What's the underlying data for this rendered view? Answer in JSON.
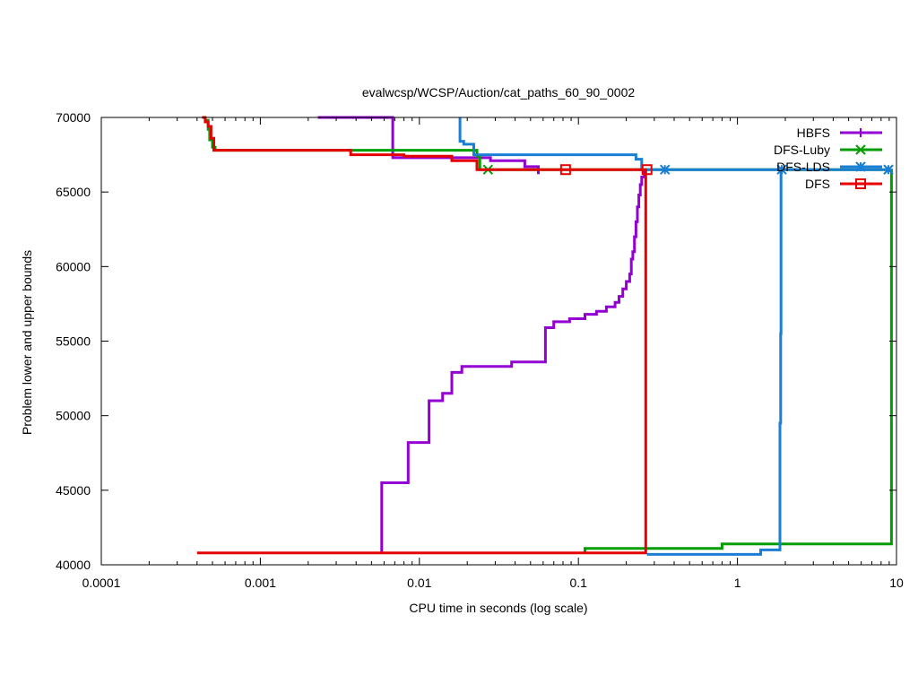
{
  "chart_data": {
    "type": "line",
    "title": "evalwcsp/WCSP/Auction/cat_paths_60_90_0002",
    "xlabel": "CPU time in seconds (log scale)",
    "ylabel": "Problem lower and upper bounds",
    "x_scale": "log",
    "xlim": [
      0.0001,
      10
    ],
    "ylim": [
      40000,
      70000
    ],
    "x_ticks": [
      0.0001,
      0.001,
      0.01,
      0.1,
      1,
      10
    ],
    "x_tick_labels": [
      "0.0001",
      "0.001",
      "0.01",
      "0.1",
      "1",
      "10"
    ],
    "y_ticks": [
      40000,
      45000,
      50000,
      55000,
      60000,
      65000,
      70000
    ],
    "y_tick_labels": [
      "40000",
      "45000",
      "50000",
      "55000",
      "60000",
      "65000",
      "70000"
    ],
    "grid": false,
    "legend_position": "top-right",
    "series": [
      {
        "name": "HBFS",
        "color": "#9400d3",
        "marker": "plus",
        "marker_x": [],
        "bounds": [
          {
            "points": [
              [
                0.0023,
                70000
              ],
              [
                0.0068,
                70000
              ],
              [
                0.0068,
                67300
              ],
              [
                0.028,
                67300
              ],
              [
                0.028,
                67100
              ],
              [
                0.046,
                67100
              ],
              [
                0.046,
                66700
              ],
              [
                0.056,
                66700
              ],
              [
                0.056,
                66200
              ]
            ]
          },
          {
            "points": [
              [
                0.0058,
                40800
              ],
              [
                0.0058,
                45500
              ],
              [
                0.0085,
                45500
              ],
              [
                0.0085,
                48200
              ],
              [
                0.0115,
                48200
              ],
              [
                0.0115,
                51000
              ],
              [
                0.014,
                51000
              ],
              [
                0.014,
                51500
              ],
              [
                0.016,
                51500
              ],
              [
                0.016,
                52900
              ],
              [
                0.0185,
                52900
              ],
              [
                0.0185,
                53300
              ],
              [
                0.038,
                53300
              ],
              [
                0.038,
                53600
              ],
              [
                0.062,
                53600
              ],
              [
                0.062,
                55900
              ],
              [
                0.07,
                55900
              ],
              [
                0.07,
                56300
              ],
              [
                0.088,
                56300
              ],
              [
                0.088,
                56500
              ],
              [
                0.11,
                56500
              ],
              [
                0.11,
                56800
              ],
              [
                0.13,
                56800
              ],
              [
                0.13,
                57000
              ],
              [
                0.15,
                57000
              ],
              [
                0.15,
                57300
              ],
              [
                0.17,
                57300
              ],
              [
                0.17,
                57600
              ],
              [
                0.18,
                57600
              ],
              [
                0.18,
                58000
              ],
              [
                0.19,
                58000
              ],
              [
                0.19,
                58500
              ],
              [
                0.2,
                58500
              ],
              [
                0.2,
                59000
              ],
              [
                0.21,
                59000
              ],
              [
                0.21,
                59500
              ],
              [
                0.215,
                59500
              ],
              [
                0.215,
                60500
              ],
              [
                0.22,
                60500
              ],
              [
                0.22,
                61000
              ],
              [
                0.225,
                61000
              ],
              [
                0.225,
                62000
              ],
              [
                0.23,
                62000
              ],
              [
                0.23,
                63000
              ],
              [
                0.235,
                63000
              ],
              [
                0.235,
                64000
              ],
              [
                0.24,
                64000
              ],
              [
                0.24,
                64800
              ],
              [
                0.245,
                64800
              ],
              [
                0.245,
                65500
              ],
              [
                0.25,
                65500
              ],
              [
                0.25,
                66000
              ],
              [
                0.26,
                66000
              ],
              [
                0.26,
                66500
              ]
            ]
          }
        ]
      },
      {
        "name": "DFS-Luby",
        "color": "#009e00",
        "marker": "x",
        "marker_x": [
          0.027,
          8.9
        ],
        "bounds": [
          {
            "points": [
              [
                0.00045,
                69800
              ],
              [
                0.00047,
                69800
              ],
              [
                0.00047,
                69200
              ],
              [
                0.00048,
                69200
              ],
              [
                0.00048,
                68500
              ],
              [
                0.0005,
                68500
              ],
              [
                0.0005,
                68000
              ],
              [
                0.00052,
                68000
              ],
              [
                0.00052,
                67800
              ],
              [
                0.023,
                67800
              ],
              [
                0.023,
                67400
              ],
              [
                0.024,
                67400
              ],
              [
                0.024,
                66500
              ],
              [
                8.9,
                66500
              ]
            ]
          },
          {
            "points": [
              [
                0.11,
                40800
              ],
              [
                0.11,
                41100
              ],
              [
                0.8,
                41100
              ],
              [
                0.8,
                41400
              ],
              [
                9.3,
                41400
              ],
              [
                9.3,
                66500
              ]
            ]
          }
        ]
      },
      {
        "name": "DFS-LDS",
        "color": "#1a7fd4",
        "marker": "star",
        "marker_x": [
          0.35,
          1.9,
          8.9
        ],
        "bounds": [
          {
            "points": [
              [
                0.018,
                70000
              ],
              [
                0.018,
                68400
              ],
              [
                0.019,
                68400
              ],
              [
                0.019,
                68200
              ],
              [
                0.022,
                68200
              ],
              [
                0.022,
                67500
              ],
              [
                0.23,
                67500
              ],
              [
                0.23,
                67200
              ],
              [
                0.25,
                67200
              ],
              [
                0.25,
                66500
              ],
              [
                8.9,
                66500
              ]
            ]
          },
          {
            "points": [
              [
                0.27,
                40700
              ],
              [
                1.4,
                40700
              ],
              [
                1.4,
                41000
              ],
              [
                1.85,
                41000
              ],
              [
                1.85,
                49500
              ],
              [
                1.87,
                49500
              ],
              [
                1.87,
                55500
              ],
              [
                1.88,
                55500
              ],
              [
                1.88,
                66500
              ]
            ]
          }
        ]
      },
      {
        "name": "DFS",
        "color": "#e60000",
        "marker": "square",
        "marker_x": [
          0.083,
          0.27
        ],
        "bounds": [
          {
            "points": [
              [
                0.00043,
                70000
              ],
              [
                0.00045,
                70000
              ],
              [
                0.00045,
                69700
              ],
              [
                0.00047,
                69700
              ],
              [
                0.00047,
                69400
              ],
              [
                0.00049,
                69400
              ],
              [
                0.00049,
                68600
              ],
              [
                0.00051,
                68600
              ],
              [
                0.00051,
                67800
              ],
              [
                0.0037,
                67800
              ],
              [
                0.0037,
                67500
              ],
              [
                0.008,
                67500
              ],
              [
                0.008,
                67400
              ],
              [
                0.016,
                67400
              ],
              [
                0.016,
                67100
              ],
              [
                0.023,
                67100
              ],
              [
                0.023,
                66500
              ],
              [
                0.27,
                66500
              ]
            ]
          },
          {
            "points": [
              [
                0.0004,
                40800
              ],
              [
                0.265,
                40800
              ],
              [
                0.265,
                66500
              ]
            ]
          }
        ]
      }
    ]
  }
}
